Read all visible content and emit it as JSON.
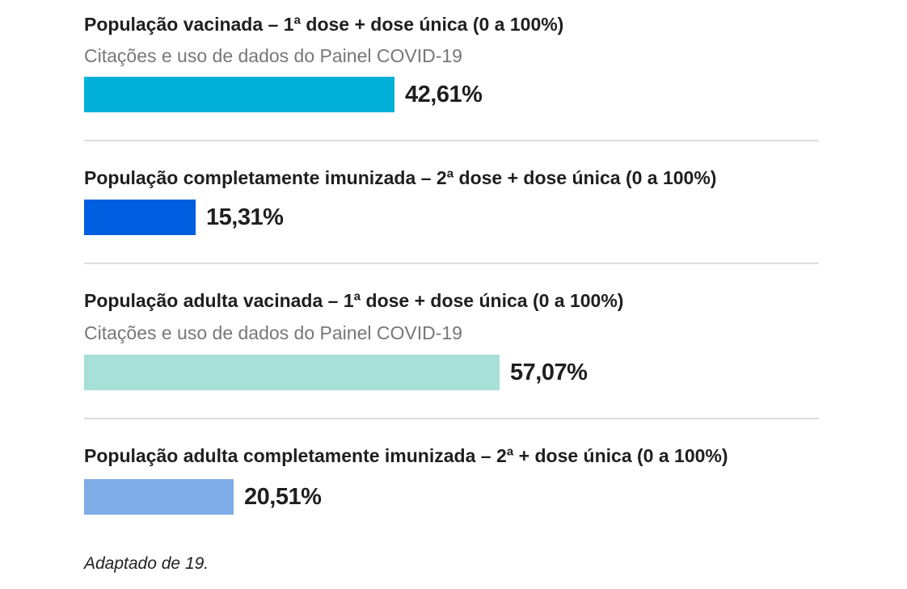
{
  "chart_data": {
    "type": "bar",
    "orientation": "horizontal",
    "scale": [
      0,
      100
    ],
    "panels": [
      {
        "title": "População vacinada – 1ª dose + dose única (0 a 100%)",
        "subtitle": "Citações e uso de dados do Painel COVID-19",
        "value": 42.61,
        "value_label": "42,61%",
        "color": "#00b0d6"
      },
      {
        "title": "População completamente imunizada – 2ª dose + dose única (0 a 100%)",
        "subtitle": "",
        "value": 15.31,
        "value_label": "15,31%",
        "color": "#005ee0"
      },
      {
        "title": "População adulta vacinada – 1ª dose + dose única (0 a 100%)",
        "subtitle": "Citações e uso de dados do Painel COVID-19",
        "value": 57.07,
        "value_label": "57,07%",
        "color": "#a6e0d6"
      },
      {
        "title": "População adulta completamente imunizada – 2ª + dose única (0 a 100%)",
        "subtitle": "",
        "value": 20.51,
        "value_label": "20,51%",
        "color": "#7eace6"
      }
    ]
  },
  "footnote": "Adaptado de 19."
}
